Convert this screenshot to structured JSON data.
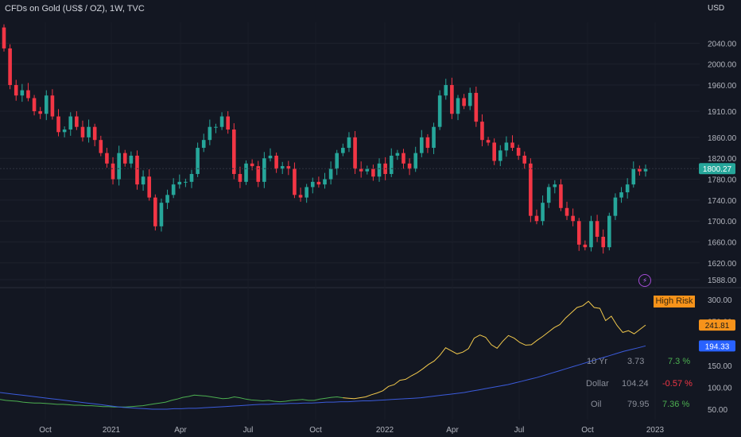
{
  "header": {
    "title": "CFDs on Gold (US$ / OZ), 1W, TVC",
    "currency": "USD"
  },
  "badges": {
    "high_risk": "High Risk"
  },
  "indicators": [
    {
      "name": "10 Yr",
      "value": "3.73",
      "change": "7.3 %",
      "color": "#4caf50"
    },
    {
      "name": "Dollar",
      "value": "104.24",
      "change": "-0.57 %",
      "color": "#f23645"
    },
    {
      "name": "Oil",
      "value": "79.95",
      "change": "7.36 %",
      "color": "#4caf50"
    }
  ],
  "chart_data": [
    {
      "type": "candlestick",
      "title": "CFDs on Gold (US$ / OZ), 1W, TVC",
      "ylabel": "USD",
      "ylim": [
        1588,
        2080
      ],
      "yticks": [
        2040,
        2000,
        1960,
        1910,
        1860,
        1820,
        1780,
        1740,
        1700,
        1660,
        1620,
        1588
      ],
      "xticks": [
        "Oct",
        "2021",
        "Apr",
        "Jul",
        "Oct",
        "2022",
        "Apr",
        "Jul",
        "Oct",
        "2023"
      ],
      "last_price": 1800.27,
      "colors": {
        "up": "#26a69a",
        "down": "#f23645"
      },
      "close": [
        2030,
        1960,
        1940,
        1950,
        1935,
        1910,
        1905,
        1940,
        1900,
        1870,
        1875,
        1900,
        1880,
        1860,
        1880,
        1855,
        1830,
        1810,
        1780,
        1830,
        1810,
        1825,
        1770,
        1785,
        1745,
        1690,
        1735,
        1750,
        1770,
        1775,
        1775,
        1790,
        1840,
        1855,
        1880,
        1880,
        1900,
        1875,
        1790,
        1775,
        1810,
        1805,
        1775,
        1820,
        1825,
        1800,
        1805,
        1800,
        1750,
        1745,
        1765,
        1775,
        1770,
        1780,
        1800,
        1830,
        1840,
        1860,
        1800,
        1795,
        1800,
        1785,
        1810,
        1790,
        1825,
        1830,
        1810,
        1800,
        1830,
        1860,
        1840,
        1880,
        1940,
        1960,
        1905,
        1935,
        1920,
        1945,
        1890,
        1855,
        1850,
        1815,
        1835,
        1850,
        1840,
        1825,
        1810,
        1710,
        1700,
        1735,
        1765,
        1770,
        1725,
        1710,
        1700,
        1655,
        1650,
        1700,
        1670,
        1650,
        1710,
        1745,
        1755,
        1770,
        1800,
        1795,
        1800
      ],
      "series": [
        {
          "name": "10 Yr",
          "ylim": [
            30,
            320
          ],
          "values": [
            72,
            70,
            69,
            68,
            66,
            65,
            64,
            64,
            63,
            62,
            61,
            61,
            60,
            59,
            59,
            58,
            58,
            57,
            56,
            56,
            55,
            55,
            55,
            56,
            57,
            58,
            60,
            62,
            64,
            66,
            70,
            73,
            77,
            79,
            82,
            81,
            80,
            78,
            76,
            74,
            75,
            78,
            76,
            73,
            71,
            70,
            69,
            70,
            68,
            67,
            68,
            70,
            71,
            72,
            70,
            70,
            73,
            75,
            77,
            78,
            76,
            75,
            74,
            76,
            78,
            83,
            87,
            92,
            102,
            106,
            116,
            118,
            126,
            133,
            142,
            152,
            160,
            173,
            190,
            183,
            176,
            180,
            188,
            212,
            219,
            214,
            197,
            189,
            205,
            218,
            212,
            202,
            196,
            197,
            207,
            216,
            226,
            236,
            243,
            258,
            270,
            282,
            286,
            296,
            282,
            280,
            252,
            262,
            241,
            225,
            229,
            222,
            232,
            241.81
          ]
        },
        {
          "name": "Dollar",
          "ylim": [
            30,
            320
          ],
          "values": [
            88,
            86,
            84,
            82,
            80,
            78,
            76,
            74,
            72,
            70,
            68,
            66,
            64,
            62,
            60,
            58,
            56,
            54,
            53,
            52,
            51,
            50,
            50,
            50,
            51,
            51,
            52,
            52,
            53,
            54,
            55,
            56,
            57,
            58,
            59,
            60,
            61,
            61,
            62,
            62,
            63,
            63,
            64,
            64,
            65,
            66,
            66,
            67,
            67,
            68,
            69,
            69,
            70,
            71,
            72,
            73,
            74,
            75,
            76,
            78,
            80,
            82,
            84,
            86,
            88,
            91,
            94,
            97,
            100,
            103,
            106,
            110,
            114,
            118,
            122,
            127,
            132,
            137,
            142,
            147,
            152,
            157,
            162,
            167,
            172,
            177,
            182,
            186,
            190,
            194.33
          ]
        }
      ]
    }
  ]
}
